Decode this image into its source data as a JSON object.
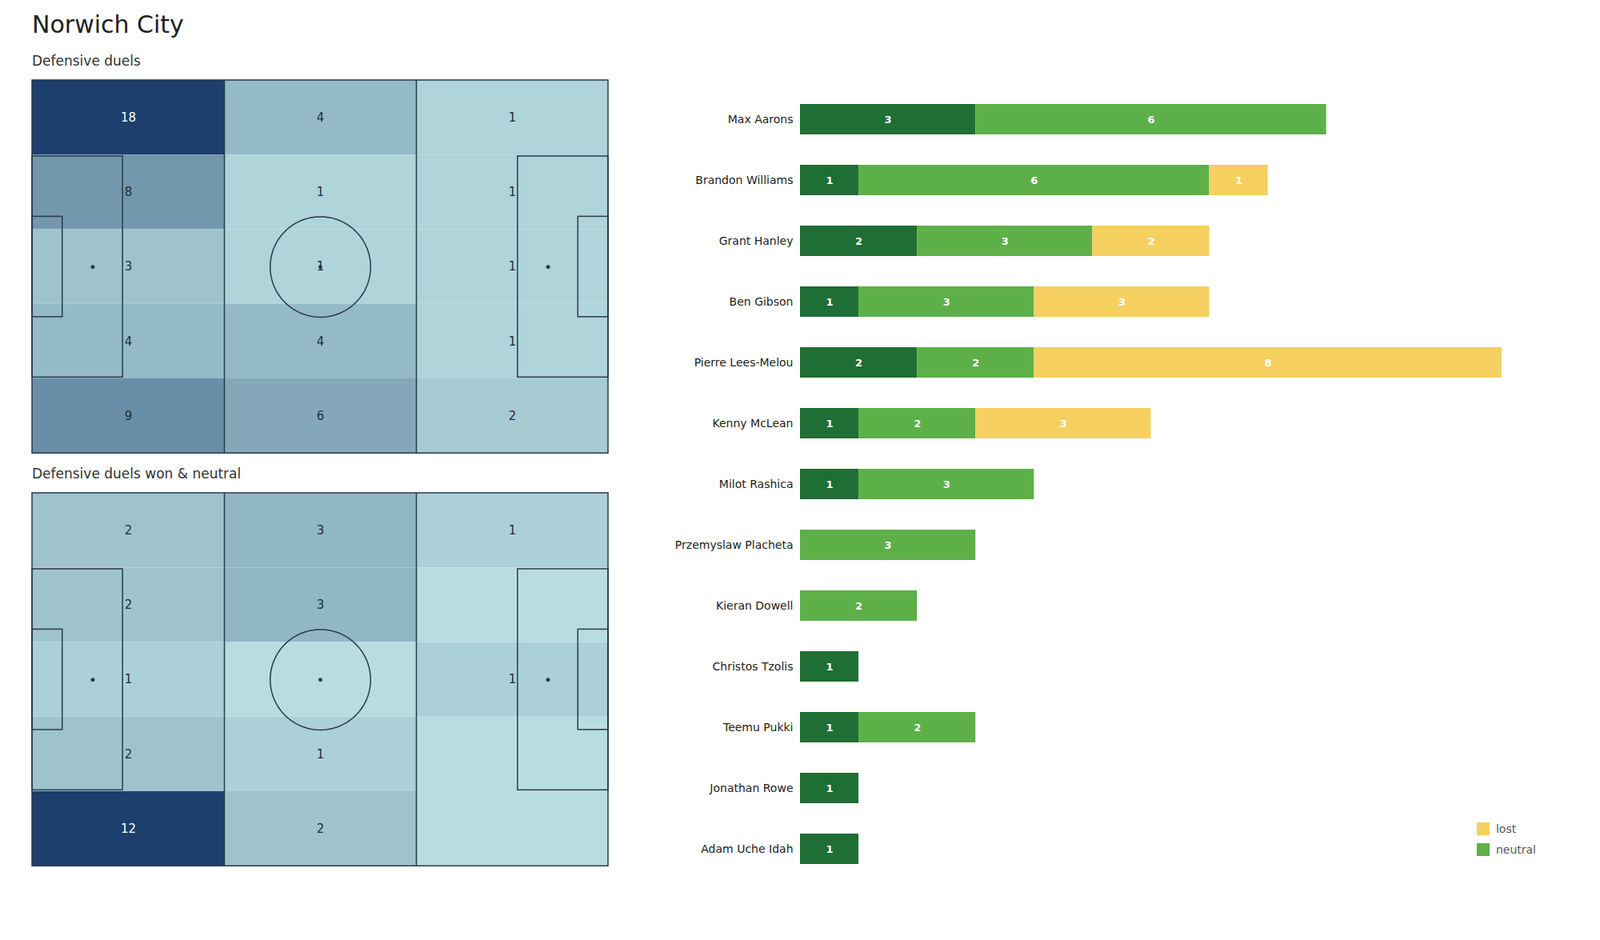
{
  "title": "Norwich City",
  "chart_data": [
    {
      "type": "heatmap",
      "title": "Defensive duels",
      "values": [
        [
          18,
          4,
          1
        ],
        [
          8,
          1,
          1
        ],
        [
          3,
          1,
          1
        ],
        [
          4,
          4,
          1
        ],
        [
          9,
          6,
          2
        ]
      ],
      "xlim": [
        0,
        105
      ],
      "ylim": [
        0,
        68
      ],
      "zlim": [
        0,
        18
      ],
      "colorscale": [
        "#b8dde0",
        "#1c3f6e"
      ],
      "tick_labels": false,
      "data_labels": true
    },
    {
      "type": "heatmap",
      "title": "Defensive duels won & neutral",
      "values": [
        [
          2,
          3,
          1
        ],
        [
          2,
          3,
          0
        ],
        [
          1,
          0,
          1
        ],
        [
          2,
          1,
          0
        ],
        [
          12,
          2,
          0
        ]
      ],
      "value_labels": [
        [
          "2",
          "3",
          "1"
        ],
        [
          "2",
          "3",
          null
        ],
        [
          "1",
          null,
          "1"
        ],
        [
          "2",
          "1",
          null
        ],
        [
          "12",
          "2",
          null
        ]
      ],
      "xlim": [
        0,
        105
      ],
      "ylim": [
        0,
        68
      ],
      "zlim": [
        0,
        12
      ],
      "colorscale": [
        "#b8dde0",
        "#1c3f6e"
      ],
      "tick_labels": false,
      "data_labels": true
    },
    {
      "type": "bar",
      "orientation": "horizontal",
      "stacked": true,
      "categories": [
        "Max Aarons",
        "Brandon Williams",
        "Grant Hanley",
        "Ben Gibson",
        "Pierre Lees-Melou",
        "Kenny McLean",
        "Milot Rashica",
        "Przemyslaw Placheta",
        "Kieran Dowell",
        "Christos Tzolis",
        "Teemu Pukki",
        "Jonathan Rowe",
        "Adam Uche Idah"
      ],
      "series": [
        {
          "name": null,
          "color": "#1f6e35",
          "values": [
            3,
            1,
            2,
            1,
            2,
            1,
            1,
            0,
            0,
            1,
            1,
            1,
            1
          ]
        },
        {
          "name": "neutral",
          "color": "#5db048",
          "values": [
            6,
            6,
            3,
            3,
            2,
            2,
            3,
            3,
            2,
            0,
            2,
            0,
            0
          ]
        },
        {
          "name": "lost",
          "color": "#f5d060",
          "values": [
            0,
            1,
            2,
            3,
            8,
            3,
            0,
            0,
            0,
            0,
            0,
            0,
            0
          ]
        }
      ],
      "xlim": [
        0,
        13
      ],
      "tick_labels": "y",
      "data_labels": true,
      "legend": "lower right"
    }
  ]
}
